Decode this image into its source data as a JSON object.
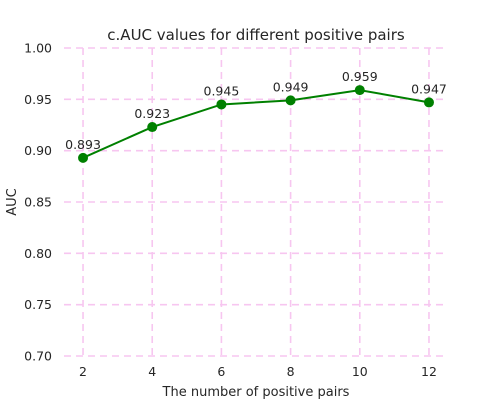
{
  "chart_data": {
    "type": "line",
    "title": "c.AUC values for different positive pairs",
    "xlabel": "The number of positive pairs",
    "ylabel": "AUC",
    "x": [
      2,
      4,
      6,
      8,
      10,
      12
    ],
    "series": [
      {
        "values": [
          0.893,
          0.923,
          0.945,
          0.949,
          0.959,
          0.947
        ]
      }
    ],
    "data_labels": [
      "0.893",
      "0.923",
      "0.945",
      "0.949",
      "0.959",
      "0.947"
    ],
    "xticks": [
      2,
      4,
      6,
      8,
      10,
      12
    ],
    "xtick_labels": [
      "2",
      "4",
      "6",
      "8",
      "10",
      "12"
    ],
    "yticks": [
      0.7,
      0.75,
      0.8,
      0.85,
      0.9,
      0.95,
      1.0
    ],
    "ytick_labels": [
      "0.70",
      "0.75",
      "0.80",
      "0.85",
      "0.90",
      "0.95",
      "1.00"
    ],
    "xlim": [
      1.45,
      12.55
    ],
    "ylim": [
      0.7,
      1.0
    ],
    "grid": true,
    "colors": {
      "line": "#008000",
      "marker": "#008000",
      "grid": "#f7c6f0"
    },
    "marker": "circle",
    "legend": "none"
  }
}
